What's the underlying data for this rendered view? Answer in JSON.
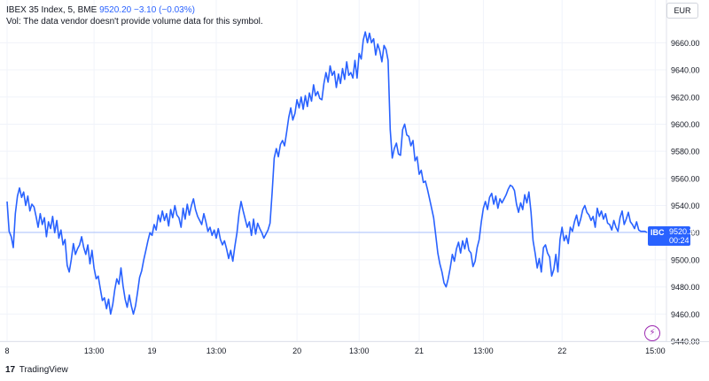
{
  "legend": {
    "symbol_name": "IBEX 35 Index, 5, BME",
    "last_price": "9520.20",
    "change": "−3.10 (−0.03%)",
    "volume_note": "Vol: The data vendor doesn't provide volume data for this symbol."
  },
  "toolbar": {
    "currency": "EUR"
  },
  "price_tag": {
    "symbol": "IBC",
    "price": "9520.20",
    "countdown": "00:24"
  },
  "branding": {
    "logo_text": "TradingView",
    "logo_mark": "17"
  },
  "colors": {
    "line": "#2962ff",
    "grid": "#f0f3fa",
    "label": "#131722",
    "last_line": "#2962ff"
  },
  "chart_data": {
    "type": "line",
    "title": "IBEX 35 Index, 5, BME",
    "xlabel": "",
    "ylabel": "",
    "ylim": [
      9440,
      9685
    ],
    "yticks": [
      9440,
      9460,
      9480,
      9500,
      9520,
      9540,
      9560,
      9580,
      9600,
      9620,
      9640,
      9660
    ],
    "ytick_labels": [
      "9440.00",
      "9460.00",
      "9480.00",
      "9500.00",
      "9520.00",
      "9540.00",
      "9560.00",
      "9580.00",
      "9600.00",
      "9620.00",
      "9640.00",
      "9660.00"
    ],
    "xticks": [
      {
        "label": "8",
        "i": 0
      },
      {
        "label": "13:00",
        "i": 42
      },
      {
        "label": "19",
        "i": 70
      },
      {
        "label": "13:00",
        "i": 101
      },
      {
        "label": "20",
        "i": 140
      },
      {
        "label": "13:00",
        "i": 170
      },
      {
        "label": "21",
        "i": 199
      },
      {
        "label": "13:00",
        "i": 230
      },
      {
        "label": "22",
        "i": 268
      },
      {
        "label": "15:00",
        "i": 313
      }
    ],
    "last_price": 9520.2,
    "series": [
      {
        "values": [
          9543,
          9521,
          9517,
          9509,
          9534,
          9547,
          9553,
          9546,
          9550,
          9540,
          9547,
          9536,
          9541,
          9539,
          9532,
          9524,
          9534,
          9526,
          9531,
          9517,
          9528,
          9523,
          9532,
          9520,
          9529,
          9516,
          9522,
          9511,
          9515,
          9496,
          9491,
          9500,
          9512,
          9504,
          9508,
          9511,
          9517,
          9509,
          9504,
          9511,
          9497,
          9507,
          9494,
          9486,
          9488,
          9479,
          9470,
          9472,
          9464,
          9471,
          9460,
          9467,
          9478,
          9486,
          9482,
          9494,
          9481,
          9471,
          9465,
          9474,
          9466,
          9460,
          9466,
          9476,
          9487,
          9492,
          9500,
          9507,
          9514,
          9520,
          9518,
          9526,
          9522,
          9533,
          9528,
          9536,
          9529,
          9534,
          9525,
          9537,
          9531,
          9540,
          9533,
          9531,
          9524,
          9538,
          9530,
          9541,
          9533,
          9540,
          9545,
          9537,
          9532,
          9529,
          9526,
          9534,
          9528,
          9521,
          9524,
          9518,
          9522,
          9516,
          9523,
          9515,
          9511,
          9514,
          9508,
          9501,
          9507,
          9499,
          9510,
          9520,
          9534,
          9543,
          9536,
          9530,
          9524,
          9528,
          9518,
          9530,
          9519,
          9527,
          9523,
          9520,
          9516,
          9519,
          9522,
          9527,
          9550,
          9575,
          9582,
          9576,
          9585,
          9588,
          9584,
          9594,
          9605,
          9612,
          9603,
          9608,
          9618,
          9612,
          9620,
          9611,
          9621,
          9613,
          9623,
          9617,
          9629,
          9621,
          9624,
          9619,
          9618,
          9630,
          9638,
          9631,
          9643,
          9636,
          9639,
          9627,
          9637,
          9630,
          9641,
          9633,
          9646,
          9636,
          9638,
          9634,
          9647,
          9634,
          9652,
          9648,
          9662,
          9668,
          9660,
          9667,
          9660,
          9663,
          9651,
          9659,
          9654,
          9646,
          9658,
          9655,
          9647,
          9596,
          9575,
          9582,
          9586,
          9578,
          9577,
          9596,
          9600,
          9592,
          9591,
          9584,
          9588,
          9573,
          9576,
          9563,
          9566,
          9557,
          9558,
          9552,
          9545,
          9538,
          9531,
          9518,
          9505,
          9497,
          9491,
          9483,
          9480,
          9486,
          9494,
          9504,
          9499,
          9508,
          9513,
          9505,
          9514,
          9508,
          9516,
          9507,
          9505,
          9495,
          9499,
          9509,
          9515,
          9528,
          9538,
          9543,
          9537,
          9546,
          9549,
          9541,
          9547,
          9538,
          9545,
          9542,
          9545,
          9548,
          9552,
          9555,
          9554,
          9551,
          9541,
          9535,
          9542,
          9537,
          9548,
          9542,
          9550,
          9535,
          9514,
          9505,
          9494,
          9501,
          9491,
          9509,
          9511,
          9505,
          9502,
          9488,
          9493,
          9504,
          9491,
          9515,
          9524,
          9514,
          9518,
          9512,
          9524,
          9521,
          9528,
          9533,
          9525,
          9530,
          9537,
          9540,
          9535,
          9533,
          9529,
          9532,
          9524,
          9538,
          9532,
          9536,
          9530,
          9534,
          9527,
          9526,
          9522,
          9529,
          9524,
          9521,
          9531,
          9536,
          9526,
          9530,
          9535,
          9528,
          9526,
          9523,
          9528,
          9522,
          9521,
          9521,
          9521,
          9520.2
        ]
      }
    ],
    "grid": true,
    "axis_position": "right"
  }
}
